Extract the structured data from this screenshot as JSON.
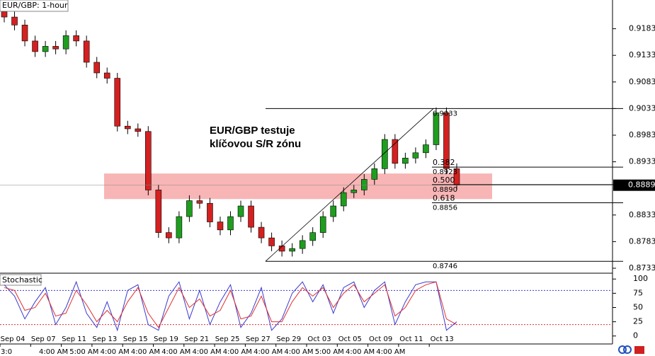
{
  "chart_data": {
    "type": "candlestick",
    "title": "EUR/GBP: 1-hour",
    "annotation": [
      "EUR/GBP testuje",
      "klíčovou S/R zónu"
    ],
    "categories": [
      "Sep 04",
      "Sep 07",
      "Sep 11",
      "Sep 13",
      "Sep 15",
      "Sep 19",
      "Sep 21",
      "Sep 25",
      "Sep 27",
      "Sep 29",
      "Oct 03",
      "Oct 05",
      "Oct 09",
      "Oct 11",
      "Oct 13"
    ],
    "time_labels": [
      "3:0",
      "4:00 AM",
      "5:00 AM",
      "4:00 AM",
      "4:00 AM",
      "4:00 AM",
      "4:00 AM",
      "4:00 AM",
      "4:00 AM",
      "4:00 AM",
      "5:00 AM",
      "4:00 AM",
      "4:00 AM"
    ],
    "up_color": "#1e9e1e",
    "down_color": "#d42020",
    "open": [
      0.9215,
      0.9205,
      0.919,
      0.916,
      0.914,
      0.915,
      0.9145,
      0.917,
      0.916,
      0.912,
      0.91,
      0.909,
      0.9,
      0.8995,
      0.899,
      0.888,
      0.88,
      0.879,
      0.883,
      0.886,
      0.8855,
      0.882,
      0.8805,
      0.883,
      0.885,
      0.881,
      0.879,
      0.8775,
      0.8765,
      0.877,
      0.8785,
      0.88,
      0.883,
      0.885,
      0.8875,
      0.888,
      0.89,
      0.892,
      0.8975,
      0.893,
      0.894,
      0.895,
      0.8965,
      0.9025,
      0.892
    ],
    "high": [
      0.9225,
      0.9215,
      0.92,
      0.917,
      0.916,
      0.916,
      0.918,
      0.918,
      0.917,
      0.913,
      0.911,
      0.91,
      0.901,
      0.9005,
      0.9,
      0.889,
      0.881,
      0.884,
      0.887,
      0.887,
      0.8865,
      0.883,
      0.884,
      0.886,
      0.886,
      0.882,
      0.88,
      0.8785,
      0.878,
      0.8795,
      0.881,
      0.884,
      0.886,
      0.8885,
      0.889,
      0.891,
      0.893,
      0.8985,
      0.8985,
      0.895,
      0.896,
      0.8975,
      0.9035,
      0.9035,
      0.893
    ],
    "low": [
      0.9195,
      0.918,
      0.915,
      0.913,
      0.913,
      0.9135,
      0.9135,
      0.915,
      0.911,
      0.909,
      0.908,
      0.899,
      0.8985,
      0.898,
      0.887,
      0.879,
      0.878,
      0.878,
      0.882,
      0.8845,
      0.881,
      0.8795,
      0.8795,
      0.882,
      0.88,
      0.878,
      0.8765,
      0.8755,
      0.8755,
      0.876,
      0.8775,
      0.879,
      0.882,
      0.884,
      0.8865,
      0.887,
      0.889,
      0.891,
      0.892,
      0.892,
      0.893,
      0.894,
      0.8955,
      0.891,
      0.888
    ],
    "close": [
      0.9205,
      0.919,
      0.916,
      0.914,
      0.915,
      0.9145,
      0.917,
      0.916,
      0.912,
      0.91,
      0.909,
      0.9,
      0.8995,
      0.899,
      0.888,
      0.88,
      0.879,
      0.883,
      0.886,
      0.8855,
      0.882,
      0.8805,
      0.883,
      0.885,
      0.881,
      0.879,
      0.8775,
      0.8765,
      0.877,
      0.8785,
      0.88,
      0.883,
      0.885,
      0.8875,
      0.888,
      0.89,
      0.892,
      0.8975,
      0.893,
      0.894,
      0.895,
      0.8965,
      0.9025,
      0.892,
      0.8889
    ],
    "ylim": [
      0.8725,
      0.9237
    ],
    "yticks": [
      0.9183,
      0.9133,
      0.9083,
      0.9033,
      0.8983,
      0.8933,
      0.8833,
      0.8783,
      0.8733
    ],
    "current_price": 0.8889,
    "zone": [
      0.8863,
      0.8911
    ],
    "zone_color": "#f7a8a8",
    "trendline": [
      0.8746,
      0.9033
    ],
    "fib_levels": [
      {
        "price": 0.9033
      },
      {
        "ratio": "0.382",
        "price": 0.8923
      },
      {
        "ratio": "0.500",
        "price": {
          "value": 0.889,
          "label": "0.8890"
        }
      },
      {
        "ratio": "0.618",
        "price": 0.8856
      },
      {
        "price": 0.8746
      }
    ],
    "stochastic": {
      "title": "Stochastic",
      "ylim": [
        -14,
        109
      ],
      "yticks": [
        0,
        25,
        50,
        75,
        100
      ],
      "levels": [
        20,
        80
      ],
      "series": [
        {
          "name": "main",
          "color": "#3a3ad0",
          "values": [
            90,
            70,
            30,
            60,
            85,
            20,
            50,
            95,
            40,
            15,
            60,
            10,
            80,
            90,
            20,
            10,
            70,
            95,
            30,
            80,
            20,
            60,
            90,
            15,
            40,
            85,
            10,
            30,
            75,
            95,
            60,
            90,
            40,
            85,
            95,
            50,
            80,
            95,
            20,
            60,
            90,
            95,
            95,
            10,
            25
          ]
        },
        {
          "name": "signal",
          "color": "#e03030",
          "values": [
            85,
            80,
            45,
            50,
            75,
            35,
            40,
            80,
            55,
            25,
            45,
            25,
            60,
            85,
            40,
            15,
            50,
            85,
            50,
            65,
            35,
            45,
            80,
            30,
            35,
            70,
            25,
            25,
            60,
            85,
            70,
            85,
            50,
            75,
            90,
            60,
            75,
            90,
            35,
            50,
            80,
            90,
            95,
            30,
            20
          ]
        }
      ]
    }
  }
}
